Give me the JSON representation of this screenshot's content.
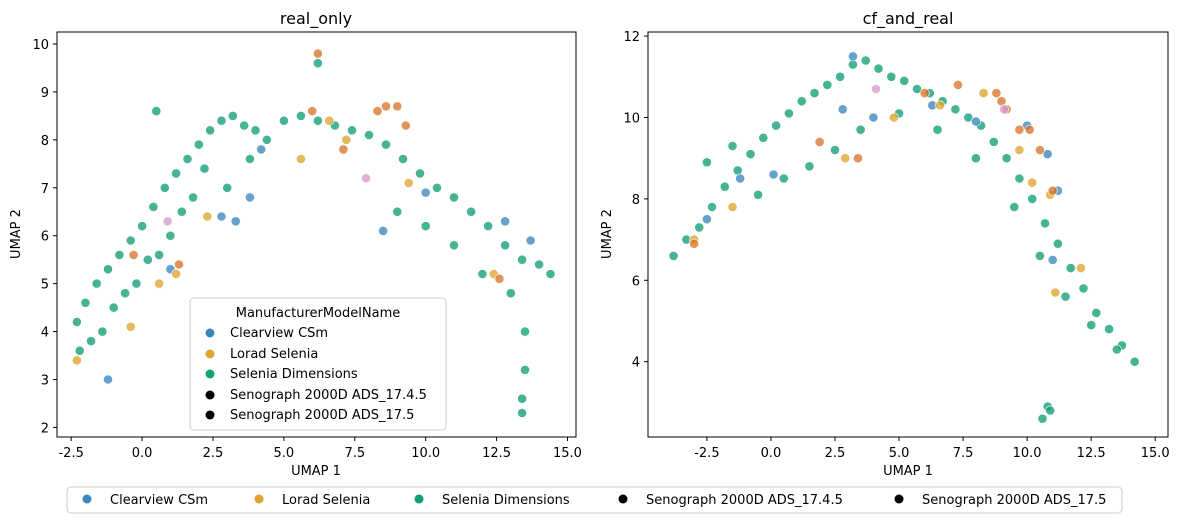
{
  "palette": {
    "Clearview CSm": "#3a87be",
    "Lorad Selenia": "#dea431",
    "Selenia Dimensions": "#129e78",
    "Senograph 2000D ADS_17.4.5": "#d7762b",
    "Senograph 2000D ADS_17.5": "#d99ad1"
  },
  "legend_categories": [
    "Clearview CSm",
    "Lorad Selenia",
    "Selenia Dimensions",
    "Senograph 2000D ADS_17.4.5",
    "Senograph 2000D ADS_17.5"
  ],
  "chart_data": [
    {
      "type": "scatter",
      "title": "real_only",
      "xlabel": "UMAP 1",
      "ylabel": "UMAP 2",
      "xlim": [
        -3.0,
        15.3
      ],
      "ylim": [
        1.8,
        10.25
      ],
      "xticks": [
        "-2.5",
        "0.0",
        "2.5",
        "5.0",
        "7.5",
        "10.0",
        "12.5",
        "15.0"
      ],
      "xtick_values": [
        -2.5,
        0,
        2.5,
        5,
        7.5,
        10,
        12.5,
        15
      ],
      "yticks": [
        "2",
        "3",
        "4",
        "5",
        "6",
        "7",
        "8",
        "9",
        "10"
      ],
      "ytick_values": [
        2,
        3,
        4,
        5,
        6,
        7,
        8,
        9,
        10
      ],
      "grid": false,
      "legend_title": "ManufacturerModelName",
      "legend_position": "lower center",
      "series": [
        {
          "name": "Selenia Dimensions",
          "x": [
            -2.3,
            -2.0,
            -1.6,
            -1.2,
            -0.8,
            -0.4,
            0.0,
            0.4,
            0.8,
            1.2,
            1.6,
            2.0,
            2.4,
            2.8,
            3.2,
            3.6,
            4.0,
            4.4,
            5.0,
            5.6,
            6.2,
            6.8,
            7.4,
            8.0,
            8.6,
            9.2,
            9.8,
            10.4,
            11.0,
            11.6,
            12.2,
            12.8,
            13.4,
            14.0,
            14.4,
            -2.2,
            -1.8,
            -1.4,
            -1.0,
            -0.6,
            -0.2,
            0.2,
            0.6,
            1.0,
            1.4,
            1.8,
            2.2,
            3.0,
            3.8,
            9.0,
            10.0,
            11.0,
            12.0,
            13.0,
            13.5,
            6.2,
            0.5,
            13.4,
            13.4,
            13.5
          ],
          "y": [
            4.2,
            4.6,
            5.0,
            5.3,
            5.6,
            5.9,
            6.2,
            6.6,
            7.0,
            7.3,
            7.6,
            7.9,
            8.2,
            8.4,
            8.5,
            8.3,
            8.2,
            8.0,
            8.4,
            8.5,
            8.4,
            8.3,
            8.2,
            8.1,
            7.9,
            7.6,
            7.3,
            7.0,
            6.8,
            6.5,
            6.2,
            5.8,
            5.5,
            5.4,
            5.2,
            3.6,
            3.8,
            4.0,
            4.5,
            4.8,
            5.0,
            5.5,
            5.6,
            6.0,
            6.5,
            6.8,
            7.4,
            7.0,
            7.6,
            6.5,
            6.2,
            5.8,
            5.2,
            4.8,
            4.0,
            9.6,
            8.6,
            2.6,
            2.3,
            3.2
          ]
        },
        {
          "name": "Clearview CSm",
          "x": [
            -1.2,
            1.0,
            2.8,
            3.3,
            3.8,
            8.5,
            10.0,
            12.8,
            13.7,
            4.2
          ],
          "y": [
            3.0,
            5.3,
            6.4,
            6.3,
            6.8,
            6.1,
            6.9,
            6.3,
            5.9,
            7.8
          ]
        },
        {
          "name": "Lorad Selenia",
          "x": [
            -2.3,
            -0.4,
            0.6,
            1.2,
            2.3,
            5.6,
            6.6,
            7.2,
            9.4,
            12.4
          ],
          "y": [
            3.4,
            4.1,
            5.0,
            5.2,
            6.4,
            7.6,
            8.4,
            8.0,
            7.1,
            5.2
          ]
        },
        {
          "name": "Senograph 2000D ADS_17.4.5",
          "x": [
            6.0,
            6.2,
            8.3,
            8.6,
            9.0,
            9.3,
            1.3,
            -0.3,
            7.1,
            12.6
          ],
          "y": [
            8.6,
            9.8,
            8.6,
            8.7,
            8.7,
            8.3,
            5.4,
            5.6,
            7.8,
            5.1
          ]
        },
        {
          "name": "Senograph 2000D ADS_17.5",
          "x": [
            0.9,
            7.9
          ],
          "y": [
            6.3,
            7.2
          ]
        }
      ]
    },
    {
      "type": "scatter",
      "title": "cf_and_real",
      "xlabel": "UMAP 1",
      "ylabel": "UMAP 2",
      "xlim": [
        -4.8,
        15.5
      ],
      "ylim": [
        2.15,
        12.1
      ],
      "xticks": [
        "-2.5",
        "0.0",
        "2.5",
        "5.0",
        "7.5",
        "10.0",
        "12.5",
        "15.0"
      ],
      "xtick_values": [
        -2.5,
        0,
        2.5,
        5,
        7.5,
        10,
        12.5,
        15
      ],
      "yticks": [
        "4",
        "6",
        "8",
        "10",
        "12"
      ],
      "ytick_values": [
        4,
        6,
        8,
        10,
        12
      ],
      "grid": false,
      "legend_position": "none",
      "series": [
        {
          "name": "Selenia Dimensions",
          "x": [
            -3.8,
            -3.3,
            -2.8,
            -2.3,
            -1.8,
            -1.3,
            -0.8,
            -0.3,
            0.2,
            0.7,
            1.2,
            1.7,
            2.2,
            2.7,
            3.2,
            3.7,
            4.2,
            4.7,
            5.2,
            5.7,
            6.2,
            6.7,
            7.2,
            7.7,
            8.2,
            8.7,
            9.2,
            9.7,
            10.2,
            10.7,
            11.2,
            11.7,
            12.2,
            12.7,
            13.2,
            13.7,
            14.2,
            -2.5,
            -1.5,
            -0.5,
            0.5,
            1.5,
            2.5,
            3.5,
            5.0,
            6.5,
            8.0,
            9.5,
            10.5,
            11.5,
            12.5,
            13.5,
            10.8,
            10.6,
            10.9
          ],
          "y": [
            6.6,
            7.0,
            7.3,
            7.8,
            8.3,
            8.7,
            9.1,
            9.5,
            9.8,
            10.1,
            10.4,
            10.6,
            10.8,
            11.0,
            11.3,
            11.4,
            11.2,
            11.0,
            10.9,
            10.7,
            10.6,
            10.4,
            10.2,
            10.0,
            9.8,
            9.4,
            9.0,
            8.5,
            8.0,
            7.4,
            6.9,
            6.3,
            5.8,
            5.2,
            4.8,
            4.4,
            4.0,
            8.9,
            9.3,
            8.1,
            8.5,
            8.8,
            9.2,
            9.7,
            10.1,
            9.7,
            9.0,
            7.8,
            6.6,
            5.6,
            4.9,
            4.3,
            2.9,
            2.6,
            2.8
          ]
        },
        {
          "name": "Clearview CSm",
          "x": [
            -2.5,
            -1.2,
            0.1,
            2.8,
            3.2,
            4.0,
            6.3,
            8.0,
            10.0,
            10.8,
            11.2,
            11.0
          ],
          "y": [
            7.5,
            8.5,
            8.6,
            10.2,
            11.5,
            10.0,
            10.3,
            9.9,
            9.8,
            9.1,
            8.2,
            6.5
          ]
        },
        {
          "name": "Lorad Selenia",
          "x": [
            -3.0,
            -1.5,
            2.9,
            4.8,
            6.6,
            8.3,
            9.7,
            10.2,
            10.9,
            12.1,
            11.1
          ],
          "y": [
            7.0,
            7.8,
            9.0,
            10.0,
            10.3,
            10.6,
            9.2,
            8.4,
            8.1,
            6.3,
            5.7
          ]
        },
        {
          "name": "Senograph 2000D ADS_17.4.5",
          "x": [
            -3.0,
            1.9,
            3.4,
            6.0,
            7.3,
            8.8,
            9.0,
            9.2,
            9.7,
            10.1,
            10.5,
            11.0
          ],
          "y": [
            6.9,
            9.4,
            9.0,
            10.6,
            10.8,
            10.6,
            10.4,
            10.2,
            9.7,
            9.7,
            9.2,
            8.2
          ]
        },
        {
          "name": "Senograph 2000D ADS_17.5",
          "x": [
            4.1,
            9.1
          ],
          "y": [
            10.7,
            10.2
          ]
        }
      ]
    }
  ]
}
